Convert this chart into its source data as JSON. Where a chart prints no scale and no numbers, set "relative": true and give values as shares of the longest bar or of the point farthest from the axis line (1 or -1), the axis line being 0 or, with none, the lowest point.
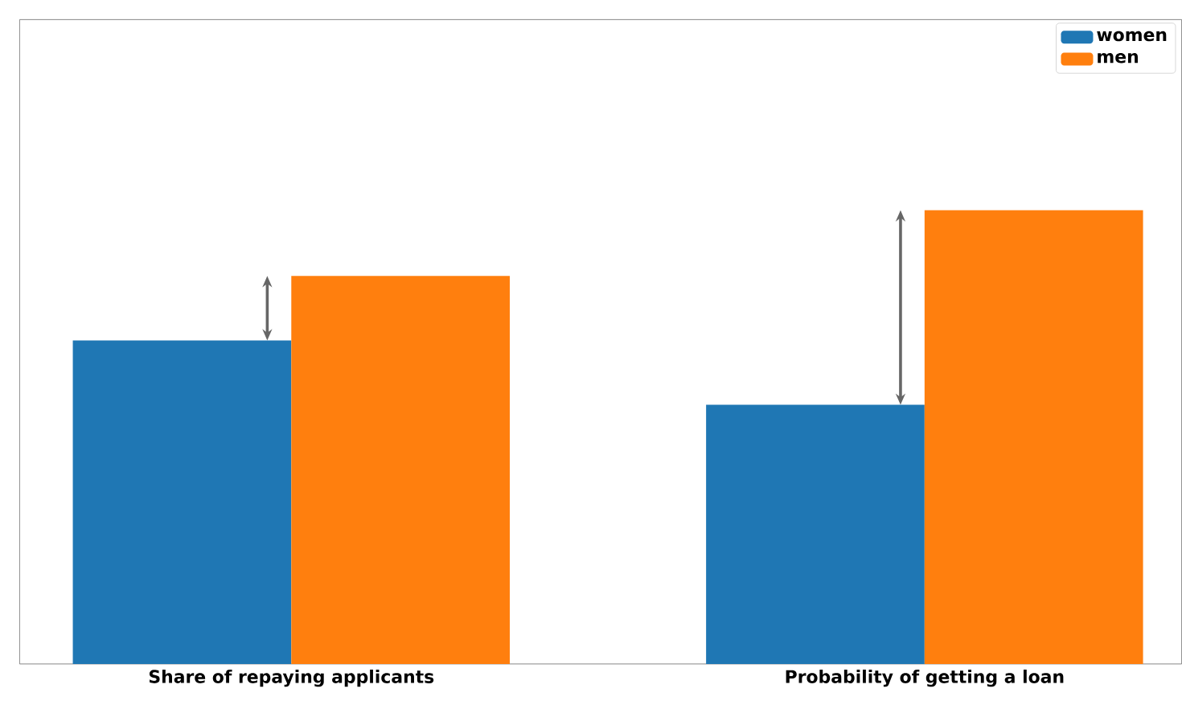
{
  "chart_data": {
    "type": "bar",
    "relative": true,
    "categories": [
      "Share of repaying applicants",
      "Probability of getting a loan"
    ],
    "series": [
      {
        "name": "women",
        "color": "#1f77b4",
        "values": [
          0.713,
          0.571
        ]
      },
      {
        "name": "men",
        "color": "#ff7f0e",
        "values": [
          0.855,
          1
        ]
      }
    ],
    "legend": "top right"
  }
}
